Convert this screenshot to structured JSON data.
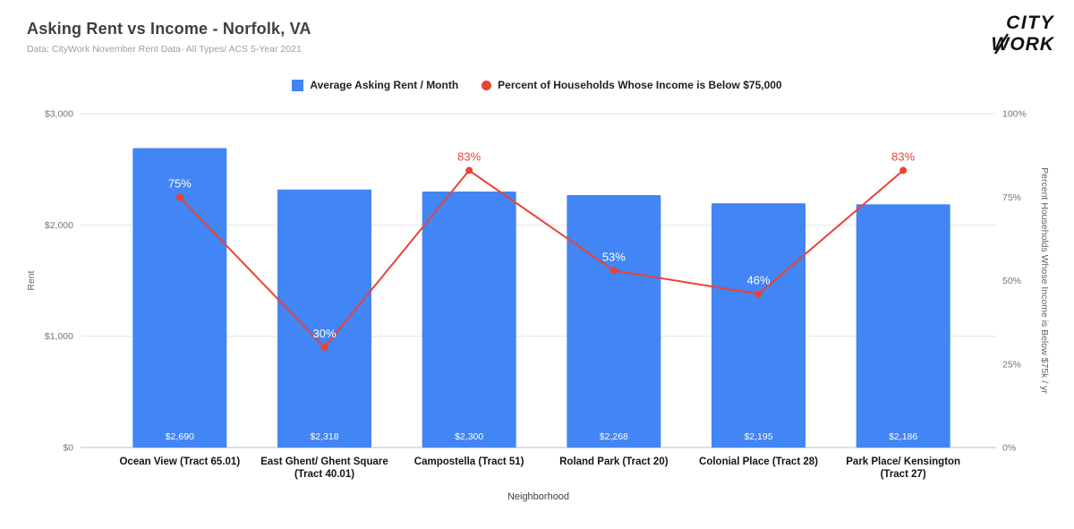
{
  "header": {
    "title": "Asking Rent vs Income - Norfolk, VA",
    "subtitle": "Data: CityWork November Rent Data- All Types/ ACS 5-Year 2021"
  },
  "logo": {
    "line1": "CITY",
    "line2": "WORK"
  },
  "legend": [
    {
      "label": "Average Asking Rent / Month",
      "shape": "square",
      "color": "#4285F4"
    },
    {
      "label": "Percent of Households Whose Income is Below $75,000",
      "shape": "circle",
      "color": "#EA4335"
    }
  ],
  "chart_data": {
    "type": "combo",
    "legend_position": "top",
    "grid": true,
    "categories": [
      "Ocean View (Tract 65.01)",
      "East Ghent/ Ghent Square (Tract 40.01)",
      "Campostella (Tract 51)",
      "Roland Park (Tract 20)",
      "Colonial Place (Tract 28)",
      "Park Place/ Kensington (Tract 27)"
    ],
    "category_lines": [
      [
        "Ocean View (Tract 65.01)"
      ],
      [
        "East Ghent/ Ghent Square",
        "(Tract 40.01)"
      ],
      [
        "Campostella (Tract 51)"
      ],
      [
        "Roland Park (Tract 20)"
      ],
      [
        "Colonial Place (Tract 28)"
      ],
      [
        "Park Place/ Kensington",
        "(Tract 27)"
      ]
    ],
    "series": [
      {
        "name": "Average Asking Rent / Month",
        "type": "bar",
        "axis": "left",
        "color": "#4285F4",
        "values": [
          2690,
          2318,
          2300,
          2268,
          2195,
          2186
        ],
        "labels": [
          "$2,690",
          "$2,318",
          "$2,300",
          "$2,268",
          "$2,195",
          "$2,186"
        ]
      },
      {
        "name": "Percent of Households Whose Income is Below $75,000",
        "type": "line",
        "axis": "right",
        "color": "#EA4335",
        "values": [
          75,
          30,
          83,
          53,
          46,
          83
        ],
        "labels": [
          "75%",
          "30%",
          "83%",
          "53%",
          "46%",
          "83%"
        ]
      }
    ],
    "xlabel": "Neighborhood",
    "left_axis": {
      "title": "Rent",
      "max": 3000,
      "values": [
        0,
        1000,
        2000,
        3000
      ],
      "ticks": [
        "$0",
        "$1,000",
        "$2,000",
        "$3,000"
      ]
    },
    "right_axis": {
      "title": "Percent Households Whose Income is Below $75k / yr",
      "max": 100,
      "values": [
        0,
        25,
        50,
        75,
        100
      ],
      "ticks": [
        "0%",
        "25%",
        "50%",
        "75%",
        "100%"
      ]
    }
  }
}
